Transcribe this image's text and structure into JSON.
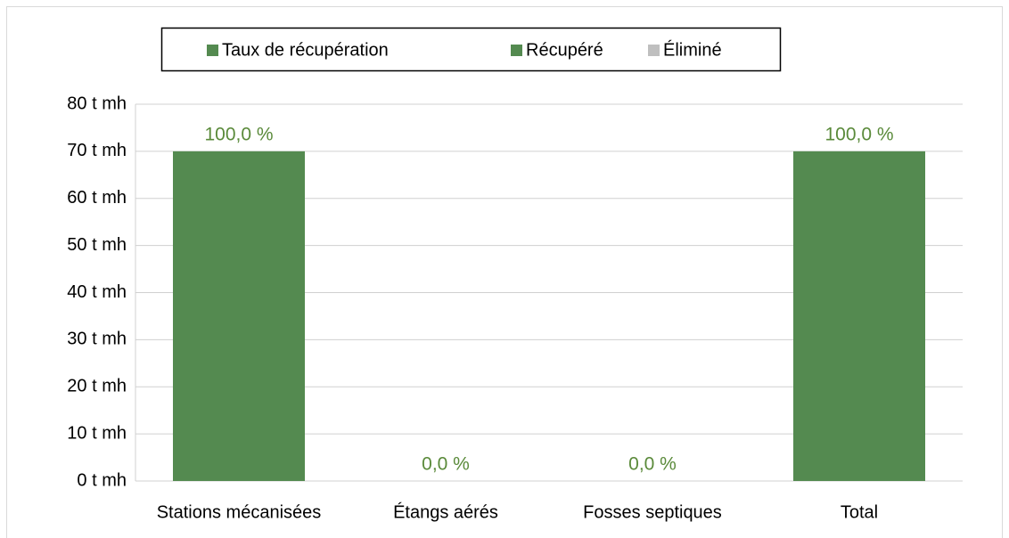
{
  "chart_data": {
    "type": "bar",
    "stacked": true,
    "categories": [
      "Stations mécanisées",
      "Étangs aérés",
      "Fosses septiques",
      "Total"
    ],
    "series": [
      {
        "name": "Récupéré",
        "color": "#548a50",
        "values": [
          70,
          0,
          0,
          70
        ]
      },
      {
        "name": "Éliminé",
        "color": "#bfbfbf",
        "values": [
          0,
          0,
          0,
          0
        ]
      }
    ],
    "rate_series": {
      "name": "Taux de récupération",
      "color": "#548a50",
      "values": [
        100,
        0,
        0,
        100
      ],
      "value_labels": [
        "100,0 %",
        "0,0 %",
        "0,0 %",
        "100,0 %"
      ]
    },
    "ylim": [
      0,
      80
    ],
    "yticks": [
      {
        "value": 0,
        "label": "0 t mh"
      },
      {
        "value": 10,
        "label": "10 t mh"
      },
      {
        "value": 20,
        "label": "20 t mh"
      },
      {
        "value": 30,
        "label": "30 t mh"
      },
      {
        "value": 40,
        "label": "40 t mh"
      },
      {
        "value": 50,
        "label": "50 t mh"
      },
      {
        "value": 60,
        "label": "60 t mh"
      },
      {
        "value": 70,
        "label": "70 t mh"
      },
      {
        "value": 80,
        "label": "80 t mh"
      }
    ],
    "grid": true,
    "legend": "top"
  }
}
